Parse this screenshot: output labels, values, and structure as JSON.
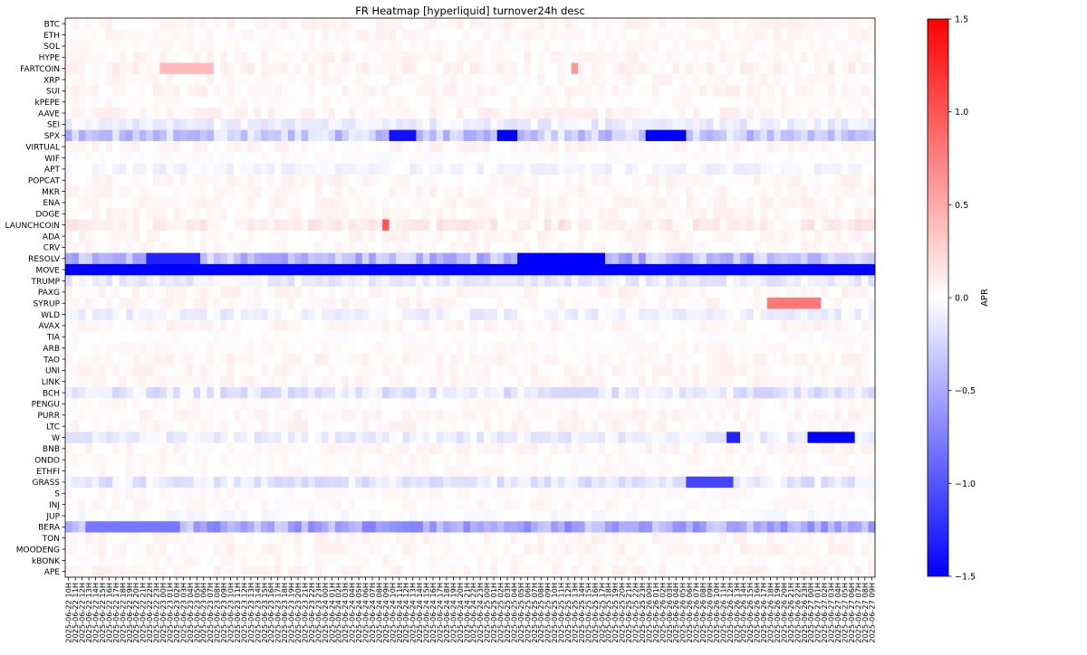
{
  "chart_data": {
    "type": "heatmap",
    "title": "FR Heatmap [hyperliquid] turnover24h desc",
    "colorbar": {
      "label": "APR",
      "range": [
        -1.5,
        1.5
      ],
      "ticks": [
        "1.5",
        "1.0",
        "0.5",
        "0.0",
        "−0.5",
        "−1.0",
        "−1.5"
      ],
      "tick_values": [
        1.5,
        1.0,
        0.5,
        0.0,
        -0.5,
        -1.0,
        -1.5
      ],
      "cmap": "bwr",
      "colors": {
        "low": "#0000ff",
        "mid": "#ffffff",
        "high": "#ff0000"
      }
    },
    "rows": [
      "BTC",
      "ETH",
      "SOL",
      "HYPE",
      "FARTCOIN",
      "XRP",
      "SUI",
      "kPEPE",
      "AAVE",
      "SEI",
      "SPX",
      "VIRTUAL",
      "WIF",
      "APT",
      "POPCAT",
      "MKR",
      "ENA",
      "DOGE",
      "LAUNCHCOIN",
      "ADA",
      "CRV",
      "RESOLV",
      "MOVE",
      "TRUMP",
      "PAXG",
      "SYRUP",
      "WLD",
      "AVAX",
      "TIA",
      "ARB",
      "TAO",
      "UNI",
      "LINK",
      "BCH",
      "PENGU",
      "PURR",
      "LTC",
      "W",
      "BNB",
      "ONDO",
      "ETHFI",
      "GRASS",
      "S",
      "INJ",
      "JUP",
      "BERA",
      "TON",
      "MOODENG",
      "kBONK",
      "APE"
    ],
    "columns": [
      "2025-06-22 10H",
      "2025-06-22 11H",
      "2025-06-22 12H",
      "2025-06-22 13H",
      "2025-06-22 14H",
      "2025-06-22 15H",
      "2025-06-22 16H",
      "2025-06-22 17H",
      "2025-06-22 18H",
      "2025-06-22 19H",
      "2025-06-22 20H",
      "2025-06-22 21H",
      "2025-06-22 22H",
      "2025-06-22 23H",
      "2025-06-23 00H",
      "2025-06-23 01H",
      "2025-06-23 02H",
      "2025-06-23 03H",
      "2025-06-23 04H",
      "2025-06-23 05H",
      "2025-06-23 06H",
      "2025-06-23 07H",
      "2025-06-23 08H",
      "2025-06-23 09H",
      "2025-06-23 10H",
      "2025-06-23 11H",
      "2025-06-23 12H",
      "2025-06-23 13H",
      "2025-06-23 14H",
      "2025-06-23 15H",
      "2025-06-23 16H",
      "2025-06-23 17H",
      "2025-06-23 18H",
      "2025-06-23 19H",
      "2025-06-23 20H",
      "2025-06-23 21H",
      "2025-06-23 22H",
      "2025-06-23 23H",
      "2025-06-24 00H",
      "2025-06-24 01H",
      "2025-06-24 02H",
      "2025-06-24 03H",
      "2025-06-24 04H",
      "2025-06-24 05H",
      "2025-06-24 06H",
      "2025-06-24 07H",
      "2025-06-24 08H",
      "2025-06-24 09H",
      "2025-06-24 10H",
      "2025-06-24 11H",
      "2025-06-24 12H",
      "2025-06-24 13H",
      "2025-06-24 14H",
      "2025-06-24 15H",
      "2025-06-24 16H",
      "2025-06-24 17H",
      "2025-06-24 18H",
      "2025-06-24 19H",
      "2025-06-24 20H",
      "2025-06-24 21H",
      "2025-06-24 22H",
      "2025-06-24 23H",
      "2025-06-25 00H",
      "2025-06-25 01H",
      "2025-06-25 02H",
      "2025-06-25 03H",
      "2025-06-25 04H",
      "2025-06-25 05H",
      "2025-06-25 06H",
      "2025-06-25 07H",
      "2025-06-25 08H",
      "2025-06-25 09H",
      "2025-06-25 10H",
      "2025-06-25 11H",
      "2025-06-25 12H",
      "2025-06-25 13H",
      "2025-06-25 14H",
      "2025-06-25 15H",
      "2025-06-25 16H",
      "2025-06-25 17H",
      "2025-06-25 18H",
      "2025-06-25 19H",
      "2025-06-25 20H",
      "2025-06-25 21H",
      "2025-06-25 22H",
      "2025-06-25 23H",
      "2025-06-26 00H",
      "2025-06-26 01H",
      "2025-06-26 02H",
      "2025-06-26 03H",
      "2025-06-26 04H",
      "2025-06-26 05H",
      "2025-06-26 06H",
      "2025-06-26 07H",
      "2025-06-26 08H",
      "2025-06-26 09H",
      "2025-06-26 10H",
      "2025-06-26 11H",
      "2025-06-26 12H",
      "2025-06-26 13H",
      "2025-06-26 14H",
      "2025-06-26 15H",
      "2025-06-26 16H",
      "2025-06-26 17H",
      "2025-06-26 18H",
      "2025-06-26 19H",
      "2025-06-26 20H",
      "2025-06-26 21H",
      "2025-06-26 22H",
      "2025-06-26 23H",
      "2025-06-27 00H",
      "2025-06-27 01H",
      "2025-06-27 02H",
      "2025-06-27 03H",
      "2025-06-27 04H",
      "2025-06-27 05H",
      "2025-06-27 06H",
      "2025-06-27 07H",
      "2025-06-27 08H",
      "2025-06-27 09H"
    ],
    "row_baseline_apr": [
      0.04,
      0.04,
      0.02,
      0.04,
      0.06,
      0.03,
      0.04,
      0.02,
      0.05,
      -0.1,
      -0.3,
      0.04,
      0.0,
      -0.05,
      0.04,
      0.04,
      0.04,
      0.04,
      0.1,
      0.04,
      0.03,
      -0.4,
      -1.3,
      -0.1,
      0.04,
      0.04,
      -0.08,
      0.04,
      0.0,
      0.02,
      0.04,
      0.04,
      0.04,
      -0.15,
      0.02,
      0.04,
      0.04,
      -0.1,
      0.04,
      0.02,
      0.02,
      -0.15,
      0.02,
      0.02,
      -0.02,
      -0.5,
      0.04,
      0.04,
      0.02,
      0.04
    ],
    "highlights": [
      {
        "row": "MOVE",
        "from": "2025-06-22 10H",
        "to": "2025-06-27 09H",
        "apr": -1.5
      },
      {
        "row": "SPX",
        "from": "2025-06-24 10H",
        "to": "2025-06-24 13H",
        "apr": -1.4
      },
      {
        "row": "SPX",
        "from": "2025-06-25 02H",
        "to": "2025-06-25 04H",
        "apr": -1.5
      },
      {
        "row": "SPX",
        "from": "2025-06-26 00H",
        "to": "2025-06-26 05H",
        "apr": -1.5
      },
      {
        "row": "RESOLV",
        "from": "2025-06-22 22H",
        "to": "2025-06-23 05H",
        "apr": -1.3
      },
      {
        "row": "RESOLV",
        "from": "2025-06-25 05H",
        "to": "2025-06-25 17H",
        "apr": -1.5
      },
      {
        "row": "W",
        "from": "2025-06-27 00H",
        "to": "2025-06-27 06H",
        "apr": -1.5
      },
      {
        "row": "W",
        "from": "2025-06-26 12H",
        "to": "2025-06-26 13H",
        "apr": -1.3
      },
      {
        "row": "GRASS",
        "from": "2025-06-26 06H",
        "to": "2025-06-26 12H",
        "apr": -1.1
      },
      {
        "row": "BERA",
        "from": "2025-06-22 13H",
        "to": "2025-06-23 02H",
        "apr": -0.8
      },
      {
        "row": "SYRUP",
        "from": "2025-06-26 18H",
        "to": "2025-06-27 01H",
        "apr": 0.8
      },
      {
        "row": "LAUNCHCOIN",
        "from": "2025-06-24 09H",
        "to": "2025-06-24 09H",
        "apr": 1.0
      },
      {
        "row": "FARTCOIN",
        "from": "2025-06-23 00H",
        "to": "2025-06-23 07H",
        "apr": 0.4
      },
      {
        "row": "FARTCOIN",
        "from": "2025-06-25 13H",
        "to": "2025-06-25 13H",
        "apr": 0.6
      }
    ]
  }
}
